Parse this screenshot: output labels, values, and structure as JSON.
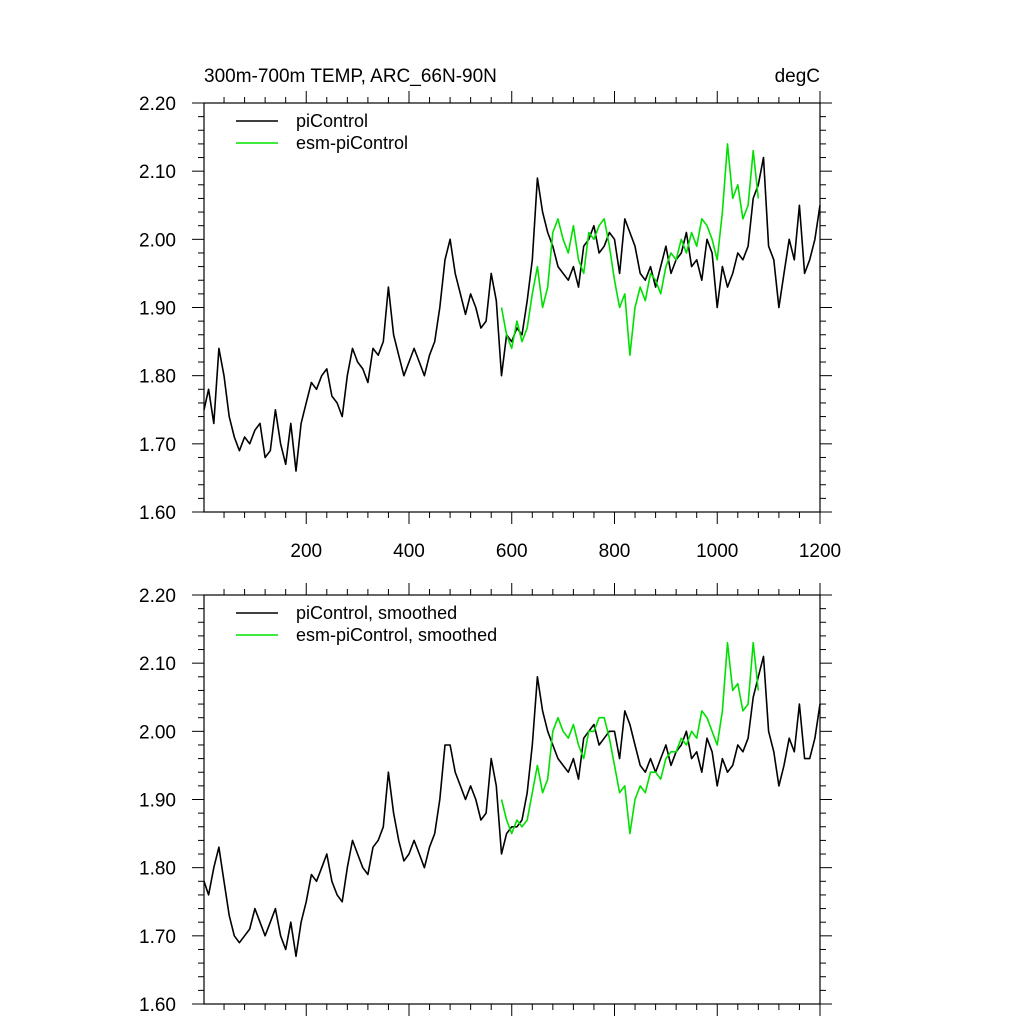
{
  "figure_title": "300m-700m TEMP, ARC_66N-90N",
  "units": "degC",
  "colors": {
    "picontrol": "#000000",
    "esm_picontrol": "#00e000",
    "axes": "#000000",
    "background": "#ffffff"
  },
  "chart_data": [
    {
      "type": "line",
      "name": "raw",
      "title": "300m-700m TEMP, ARC_66N-90N",
      "units_label": "degC",
      "xlim": [
        1,
        1200
      ],
      "ylim": [
        1.6,
        2.2
      ],
      "x_ticks": [
        200,
        400,
        600,
        800,
        1000,
        1200
      ],
      "x_tick_labels": [
        "200",
        "400",
        "600",
        "800",
        "1000",
        "1200"
      ],
      "y_ticks": [
        1.6,
        1.7,
        1.8,
        1.9,
        2.0,
        2.1,
        2.2
      ],
      "y_tick_labels": [
        "1.60",
        "1.70",
        "1.80",
        "1.90",
        "2.00",
        "2.10",
        "2.20"
      ],
      "legend": [
        "piControl",
        "esm-piControl"
      ],
      "legend_position": "top-left",
      "series": [
        {
          "name": "piControl",
          "color": "#000000",
          "x": [
            1,
            10,
            20,
            30,
            40,
            50,
            60,
            70,
            80,
            90,
            100,
            110,
            120,
            130,
            140,
            150,
            160,
            170,
            180,
            190,
            200,
            210,
            220,
            230,
            240,
            250,
            260,
            270,
            280,
            290,
            300,
            310,
            320,
            330,
            340,
            350,
            360,
            370,
            380,
            390,
            400,
            410,
            420,
            430,
            440,
            450,
            460,
            470,
            480,
            490,
            500,
            510,
            520,
            530,
            540,
            550,
            560,
            570,
            580,
            590,
            600,
            610,
            620,
            630,
            640,
            650,
            660,
            670,
            680,
            690,
            700,
            710,
            720,
            730,
            740,
            750,
            760,
            770,
            780,
            790,
            800,
            810,
            820,
            830,
            840,
            850,
            860,
            870,
            880,
            890,
            900,
            910,
            920,
            930,
            940,
            950,
            960,
            970,
            980,
            990,
            1000,
            1010,
            1020,
            1030,
            1040,
            1050,
            1060,
            1070,
            1080,
            1090,
            1100,
            1110,
            1120,
            1130,
            1140,
            1150,
            1160,
            1170,
            1180,
            1190,
            1200
          ],
          "values": [
            1.75,
            1.78,
            1.73,
            1.84,
            1.8,
            1.74,
            1.71,
            1.69,
            1.71,
            1.7,
            1.72,
            1.73,
            1.68,
            1.69,
            1.75,
            1.7,
            1.67,
            1.73,
            1.66,
            1.73,
            1.76,
            1.79,
            1.78,
            1.8,
            1.81,
            1.77,
            1.76,
            1.74,
            1.8,
            1.84,
            1.82,
            1.81,
            1.79,
            1.84,
            1.83,
            1.85,
            1.93,
            1.86,
            1.83,
            1.8,
            1.82,
            1.84,
            1.82,
            1.8,
            1.83,
            1.85,
            1.9,
            1.97,
            2.0,
            1.95,
            1.92,
            1.89,
            1.92,
            1.9,
            1.87,
            1.88,
            1.95,
            1.91,
            1.8,
            1.86,
            1.85,
            1.87,
            1.86,
            1.91,
            1.97,
            2.09,
            2.04,
            2.01,
            1.99,
            1.96,
            1.95,
            1.94,
            1.96,
            1.93,
            1.99,
            2.0,
            2.02,
            1.98,
            1.99,
            2.01,
            2.0,
            1.95,
            2.03,
            2.01,
            1.99,
            1.95,
            1.94,
            1.96,
            1.93,
            1.96,
            1.99,
            1.95,
            1.97,
            1.98,
            2.01,
            1.96,
            1.97,
            1.94,
            2.0,
            1.98,
            1.9,
            1.96,
            1.93,
            1.95,
            1.98,
            1.97,
            1.99,
            2.06,
            2.08,
            2.12,
            1.99,
            1.97,
            1.9,
            1.95,
            2.0,
            1.97,
            2.05,
            1.95,
            1.97,
            2.0,
            2.05
          ]
        },
        {
          "name": "esm-piControl",
          "color": "#00e000",
          "x": [
            580,
            590,
            600,
            610,
            620,
            630,
            640,
            650,
            660,
            670,
            680,
            690,
            700,
            710,
            720,
            730,
            740,
            750,
            760,
            770,
            780,
            790,
            800,
            810,
            820,
            830,
            840,
            850,
            860,
            870,
            880,
            890,
            900,
            910,
            920,
            930,
            940,
            950,
            960,
            970,
            980,
            990,
            1000,
            1010,
            1020,
            1030,
            1040,
            1050,
            1060,
            1070,
            1080
          ],
          "values": [
            1.9,
            1.86,
            1.84,
            1.88,
            1.85,
            1.87,
            1.92,
            1.96,
            1.9,
            1.93,
            2.01,
            2.03,
            2.0,
            1.98,
            2.02,
            1.97,
            1.95,
            2.01,
            2.0,
            2.02,
            2.03,
            1.99,
            1.94,
            1.9,
            1.92,
            1.83,
            1.9,
            1.93,
            1.91,
            1.95,
            1.94,
            1.92,
            1.96,
            1.98,
            1.97,
            2.0,
            1.98,
            2.01,
            1.99,
            2.03,
            2.02,
            2.0,
            1.97,
            2.04,
            2.14,
            2.06,
            2.08,
            2.03,
            2.05,
            2.13,
            2.06
          ]
        }
      ]
    },
    {
      "type": "line",
      "name": "smoothed",
      "xlim": [
        1,
        1200
      ],
      "ylim": [
        1.6,
        2.2
      ],
      "x_ticks": [
        200,
        400,
        600,
        800,
        1000,
        1200
      ],
      "y_ticks": [
        1.6,
        1.7,
        1.8,
        1.9,
        2.0,
        2.1,
        2.2
      ],
      "y_tick_labels": [
        "1.60",
        "1.70",
        "1.80",
        "1.90",
        "2.00",
        "2.10",
        "2.20"
      ],
      "legend": [
        "piControl, smoothed",
        "esm-piControl, smoothed"
      ],
      "legend_position": "top-left",
      "series": [
        {
          "name": "piControl, smoothed",
          "color": "#000000",
          "x": [
            1,
            10,
            20,
            30,
            40,
            50,
            60,
            70,
            80,
            90,
            100,
            110,
            120,
            130,
            140,
            150,
            160,
            170,
            180,
            190,
            200,
            210,
            220,
            230,
            240,
            250,
            260,
            270,
            280,
            290,
            300,
            310,
            320,
            330,
            340,
            350,
            360,
            370,
            380,
            390,
            400,
            410,
            420,
            430,
            440,
            450,
            460,
            470,
            480,
            490,
            500,
            510,
            520,
            530,
            540,
            550,
            560,
            570,
            580,
            590,
            600,
            610,
            620,
            630,
            640,
            650,
            660,
            670,
            680,
            690,
            700,
            710,
            720,
            730,
            740,
            750,
            760,
            770,
            780,
            790,
            800,
            810,
            820,
            830,
            840,
            850,
            860,
            870,
            880,
            890,
            900,
            910,
            920,
            930,
            940,
            950,
            960,
            970,
            980,
            990,
            1000,
            1010,
            1020,
            1030,
            1040,
            1050,
            1060,
            1070,
            1080,
            1090,
            1100,
            1110,
            1120,
            1130,
            1140,
            1150,
            1160,
            1170,
            1180,
            1190,
            1200
          ],
          "values": [
            1.78,
            1.76,
            1.8,
            1.83,
            1.78,
            1.73,
            1.7,
            1.69,
            1.7,
            1.71,
            1.74,
            1.72,
            1.7,
            1.72,
            1.74,
            1.7,
            1.68,
            1.72,
            1.67,
            1.72,
            1.75,
            1.79,
            1.78,
            1.8,
            1.82,
            1.78,
            1.76,
            1.75,
            1.8,
            1.84,
            1.82,
            1.8,
            1.79,
            1.83,
            1.84,
            1.86,
            1.94,
            1.88,
            1.84,
            1.81,
            1.82,
            1.84,
            1.82,
            1.8,
            1.83,
            1.85,
            1.9,
            1.98,
            1.98,
            1.94,
            1.92,
            1.9,
            1.92,
            1.9,
            1.87,
            1.88,
            1.96,
            1.92,
            1.82,
            1.85,
            1.86,
            1.86,
            1.87,
            1.91,
            1.98,
            2.08,
            2.03,
            2.0,
            1.98,
            1.96,
            1.95,
            1.94,
            1.96,
            1.93,
            1.99,
            2.0,
            2.01,
            1.98,
            1.99,
            2.0,
            2.0,
            1.96,
            2.03,
            2.01,
            1.98,
            1.95,
            1.94,
            1.96,
            1.94,
            1.96,
            1.98,
            1.95,
            1.97,
            1.98,
            2.0,
            1.96,
            1.97,
            1.94,
            1.99,
            1.97,
            1.92,
            1.96,
            1.94,
            1.95,
            1.98,
            1.97,
            1.99,
            2.05,
            2.08,
            2.11,
            2.0,
            1.97,
            1.92,
            1.95,
            1.99,
            1.97,
            2.04,
            1.96,
            1.96,
            1.99,
            2.04
          ]
        },
        {
          "name": "esm-piControl, smoothed",
          "color": "#00e000",
          "x": [
            580,
            590,
            600,
            610,
            620,
            630,
            640,
            650,
            660,
            670,
            680,
            690,
            700,
            710,
            720,
            730,
            740,
            750,
            760,
            770,
            780,
            790,
            800,
            810,
            820,
            830,
            840,
            850,
            860,
            870,
            880,
            890,
            900,
            910,
            920,
            930,
            940,
            950,
            960,
            970,
            980,
            990,
            1000,
            1010,
            1020,
            1030,
            1040,
            1050,
            1060,
            1070,
            1080
          ],
          "values": [
            1.9,
            1.87,
            1.85,
            1.87,
            1.86,
            1.87,
            1.91,
            1.95,
            1.91,
            1.93,
            2.0,
            2.02,
            2.0,
            1.99,
            2.01,
            1.98,
            1.96,
            2.0,
            2.0,
            2.02,
            2.02,
            1.99,
            1.95,
            1.91,
            1.92,
            1.85,
            1.9,
            1.92,
            1.91,
            1.94,
            1.94,
            1.93,
            1.96,
            1.97,
            1.97,
            1.99,
            1.98,
            2.0,
            1.99,
            2.03,
            2.02,
            2.0,
            1.98,
            2.03,
            2.13,
            2.06,
            2.07,
            2.03,
            2.04,
            2.13,
            2.06
          ]
        }
      ]
    }
  ]
}
